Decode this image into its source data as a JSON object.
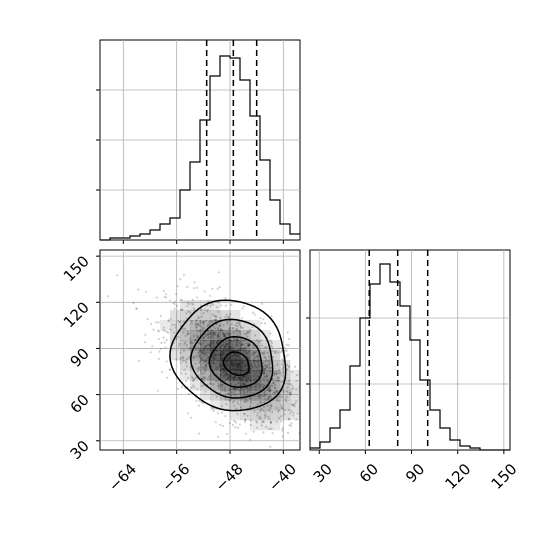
{
  "chart_data": [
    {
      "panel": "top-left",
      "type": "histogram",
      "variable": "x",
      "xlim": [
        -67.5,
        -37.5
      ],
      "ylim": [
        0,
        1
      ],
      "grid": true,
      "y_tick_labels_shown": false,
      "bin_edges": [
        -67.5,
        -66,
        -64.5,
        -63,
        -61.5,
        -60,
        -58.5,
        -57,
        -55.5,
        -54,
        -52.5,
        -51,
        -49.5,
        -48,
        -46.5,
        -45,
        -43.5,
        -42,
        -40.5,
        -39,
        -37.5
      ],
      "counts": [
        0,
        0.01,
        0.01,
        0.02,
        0.03,
        0.05,
        0.08,
        0.11,
        0.25,
        0.39,
        0.6,
        0.82,
        0.92,
        0.91,
        0.8,
        0.62,
        0.4,
        0.2,
        0.08,
        0.03
      ],
      "quantile_lines": [
        -51.5,
        -47.5,
        -44.0
      ]
    },
    {
      "panel": "bottom-left",
      "type": "2d-histogram-contour",
      "xvar": "x",
      "yvar": "y",
      "xlim": [
        -67.5,
        -37.5
      ],
      "ylim": [
        24,
        154
      ],
      "grid": true,
      "xticks": [
        -64,
        -56,
        -48,
        -40
      ],
      "xtick_labels": [
        "−64",
        "−56",
        "−48",
        "−40"
      ],
      "yticks": [
        30,
        60,
        90,
        120,
        150
      ],
      "ytick_labels": [
        "30",
        "60",
        "90",
        "120",
        "150"
      ],
      "peak": [
        -47.5,
        80
      ],
      "contour_levels": [
        {
          "center": [
            -47.0,
            80
          ],
          "rx": 2.0,
          "ry": 7
        },
        {
          "center": [
            -47.0,
            81
          ],
          "rx": 4.0,
          "ry": 16
        },
        {
          "center": [
            -47.5,
            83
          ],
          "rx": 6.2,
          "ry": 25
        },
        {
          "center": [
            -48.0,
            85
          ],
          "rx": 8.8,
          "ry": 35
        }
      ],
      "scatter_spread": [
        5.0,
        20.0
      ],
      "correlation": -0.55
    },
    {
      "panel": "bottom-right",
      "type": "histogram",
      "variable": "y",
      "xlim": [
        24,
        154
      ],
      "ylim": [
        0,
        1
      ],
      "grid": true,
      "y_tick_labels_shown": false,
      "xticks": [
        30,
        60,
        90,
        120,
        150
      ],
      "xtick_labels": [
        "30",
        "60",
        "90",
        "120",
        "150"
      ],
      "bin_edges": [
        24,
        30.5,
        37,
        43.5,
        50,
        56.5,
        63,
        69.5,
        76,
        82.5,
        89,
        95.5,
        102,
        108.5,
        115,
        121.5,
        128,
        134.5,
        141,
        147.5,
        154
      ],
      "counts": [
        0.01,
        0.04,
        0.11,
        0.2,
        0.42,
        0.66,
        0.83,
        0.93,
        0.84,
        0.72,
        0.55,
        0.35,
        0.2,
        0.11,
        0.05,
        0.02,
        0.01,
        0,
        0,
        0
      ],
      "quantile_lines": [
        62.5,
        81.0,
        100.5
      ]
    }
  ]
}
